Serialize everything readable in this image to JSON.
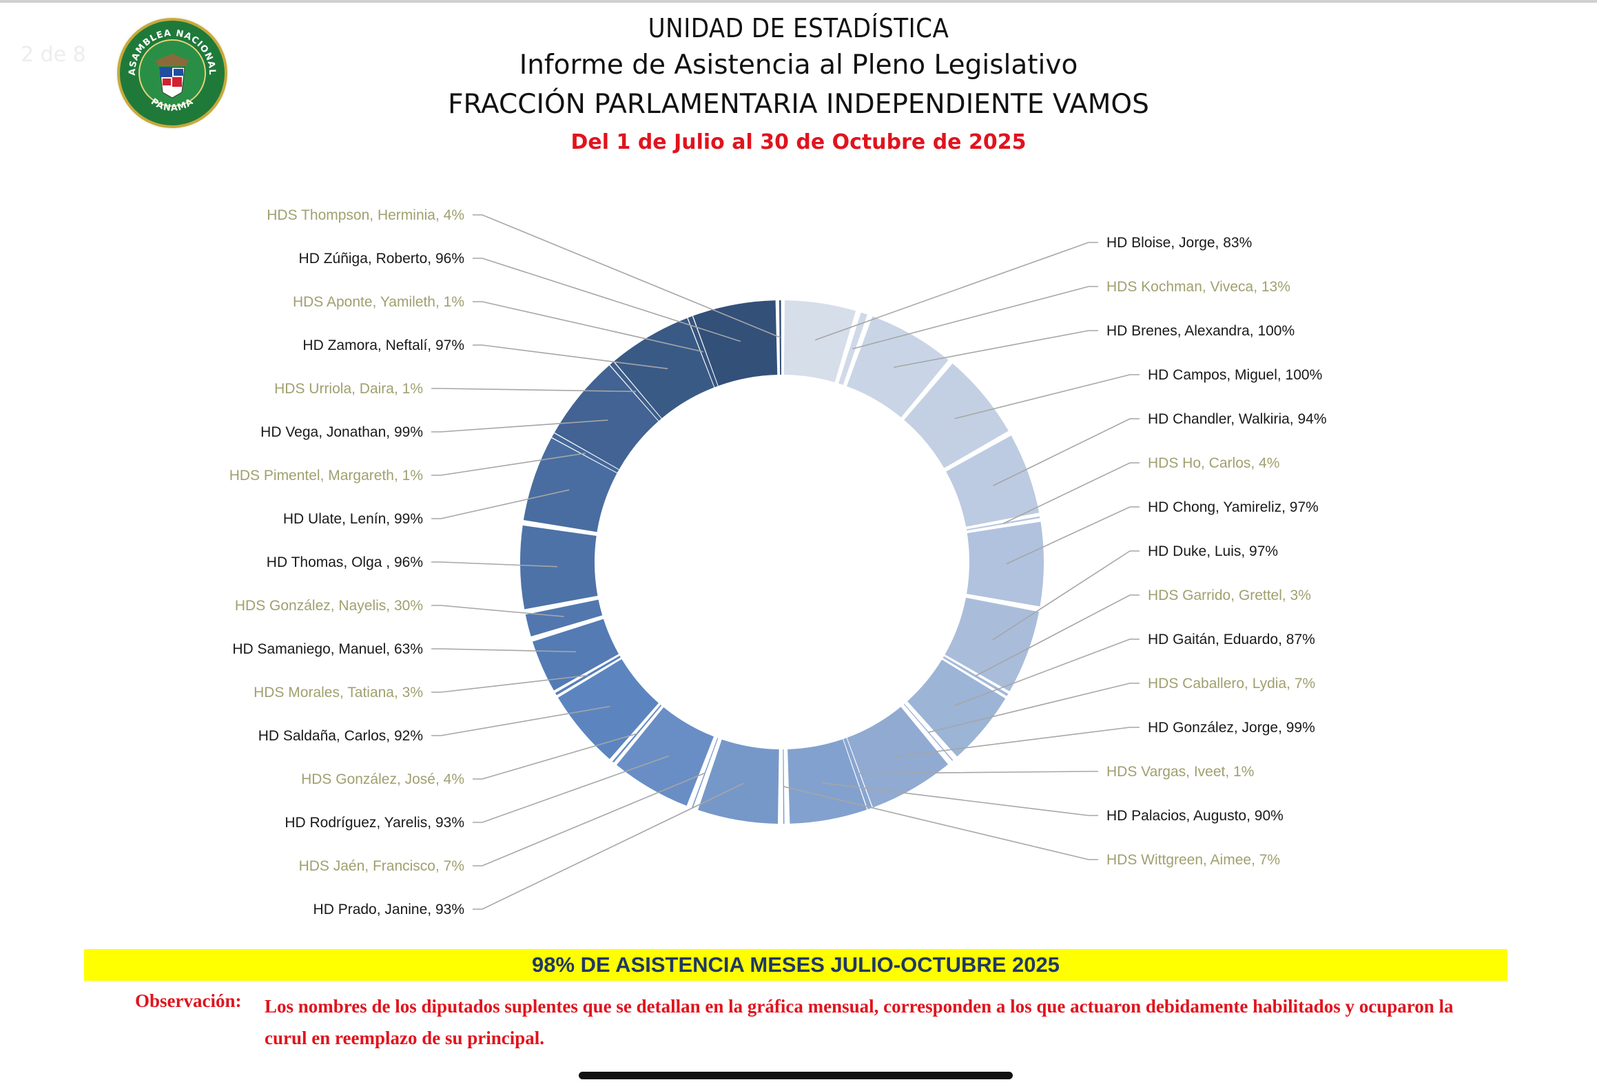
{
  "header": {
    "page_indicator": "2 de 8",
    "title_unit": "UNIDAD DE ESTADÍSTICA",
    "title_report": "Informe de Asistencia al Pleno Legislativo",
    "title_fraction": "FRACCIÓN PARLAMENTARIA INDEPENDIENTE VAMOS",
    "date_range": "Del 1 de Julio al 30 de Octubre de 2025"
  },
  "seal": {
    "text_top": "ASAMBLEA NACIONAL",
    "text_bottom": "PANAMA"
  },
  "colors": {
    "principal_label": "#1a1a1a",
    "substitute_label": "#a0a070",
    "leader_line": "#a6a6a6",
    "ring_start": "#d6deea",
    "ring_mid": "#5b84c0",
    "ring_end": "#2f4b72"
  },
  "chart_data": {
    "type": "pie",
    "style": "doughnut",
    "title": "",
    "start": "12 o'clock",
    "direction": "clockwise",
    "slices": [
      {
        "label": "HD Bloise, Jorge, 83%",
        "name": "HD Bloise, Jorge",
        "value": 83,
        "kind": "principal",
        "lines": 0
      },
      {
        "label": "HDS Kochman, Viveca, 13%",
        "name": "HDS Kochman, Viveca",
        "value": 13,
        "kind": "substitute",
        "lines": 0
      },
      {
        "label": "HD Brenes, Alexandra, 100%",
        "name": "HD Brenes, Alexandra",
        "value": 100,
        "kind": "principal",
        "lines": 0
      },
      {
        "label": "HD Campos, Miguel, 100%",
        "name": "HD Campos, Miguel",
        "value": 100,
        "kind": "principal",
        "lines": 0
      },
      {
        "label": "HD Chandler, Walkiria, 94%",
        "name": "HD Chandler, Walkiria",
        "value": 94,
        "kind": "principal",
        "lines": 0
      },
      {
        "label": "HDS Ho, Carlos, 4%",
        "name": "HDS Ho, Carlos",
        "value": 4,
        "kind": "substitute",
        "lines": 0
      },
      {
        "label": "HD Chong, Yamireliz, 97%",
        "name": "HD Chong, Yamireliz",
        "value": 97,
        "kind": "principal",
        "lines": 0
      },
      {
        "label": "HD Duke, Luis, 97%",
        "name": "HD Duke, Luis",
        "value": 97,
        "kind": "principal",
        "lines": 0
      },
      {
        "label": "HDS Garrido, Grettel, 3%",
        "name": "HDS Garrido, Grettel",
        "value": 3,
        "kind": "substitute",
        "lines": 0
      },
      {
        "label": "HD Gaitán, Eduardo, 87%",
        "name": "HD Gaitán, Eduardo",
        "value": 87,
        "kind": "principal",
        "lines": 0
      },
      {
        "label": "HDS Caballero, Lydia, 7%",
        "name": "HDS Caballero, Lydia",
        "value": 7,
        "kind": "substitute",
        "lines": 0
      },
      {
        "label": "HD González, Jorge, 99%",
        "name": "HD González, Jorge",
        "value": 99,
        "kind": "principal",
        "lines": 0
      },
      {
        "label": "HDS Vargas, Iveet, 1%",
        "name": "HDS Vargas, Iveet",
        "value": 1,
        "kind": "substitute",
        "lines": 0
      },
      {
        "label": "HD Palacios, Augusto, 90%",
        "name": "HD Palacios, Augusto",
        "value": 90,
        "kind": "principal",
        "lines": 0
      },
      {
        "label": "HDS Wittgreen, Aimee, 7%",
        "name": "HDS Wittgreen, Aimee",
        "value": 7,
        "kind": "substitute",
        "lines": 0
      },
      {
        "label": "HD Prado, Janine, 93%",
        "name": "HD Prado, Janine",
        "value": 93,
        "kind": "principal",
        "lines": 0
      },
      {
        "label": "HDS Jaén, Francisco, 7%",
        "name": "HDS Jaén, Francisco",
        "value": 7,
        "kind": "substitute",
        "lines": 0
      },
      {
        "label": "HD Rodríguez, Yarelis, 93%",
        "name": "HD Rodríguez, Yarelis",
        "value": 93,
        "kind": "principal",
        "lines": 0
      },
      {
        "label": "HDS González, José, 4%",
        "name": "HDS González, José",
        "value": 4,
        "kind": "substitute",
        "lines": 0
      },
      {
        "label": "HD Saldaña, Carlos, 92%",
        "name": "HD Saldaña, Carlos",
        "value": 92,
        "kind": "principal",
        "lines": 0
      },
      {
        "label": "HDS Morales, Tatiana, 3%",
        "name": "HDS Morales, Tatiana",
        "value": 3,
        "kind": "substitute",
        "lines": 0
      },
      {
        "label": "HD Samaniego, Manuel, 63%",
        "name": "HD Samaniego, Manuel",
        "value": 63,
        "kind": "principal",
        "lines": 0
      },
      {
        "label": "HDS González, Nayelis, 30%",
        "name": "HDS González, Nayelis",
        "value": 30,
        "kind": "substitute",
        "lines": 0
      },
      {
        "label": "HD Thomas, Olga , 96%",
        "name": "HD Thomas, Olga",
        "value": 96,
        "kind": "principal",
        "lines": 0
      },
      {
        "label": "HD Ulate, Lenín, 99%",
        "name": "HD Ulate, Lenín",
        "value": 99,
        "kind": "principal",
        "lines": 0
      },
      {
        "label": "HDS Pimentel, Margareth, 1%",
        "name": "HDS Pimentel, Margareth",
        "value": 1,
        "kind": "substitute",
        "lines": 0
      },
      {
        "label": "HD Vega, Jonathan, 99%",
        "name": "HD Vega, Jonathan",
        "value": 99,
        "kind": "principal",
        "lines": 0
      },
      {
        "label": "HDS Urriola, Daira, 1%",
        "name": "HDS Urriola, Daira",
        "value": 1,
        "kind": "substitute",
        "lines": 0
      },
      {
        "label": "HD Zamora, Neftalí, 97%",
        "name": "HD Zamora, Neftalí",
        "value": 97,
        "kind": "principal",
        "lines": 0
      },
      {
        "label": "HDS Aponte, Yamileth, 1%",
        "name": "HDS Aponte, Yamileth",
        "value": 1,
        "kind": "substitute",
        "lines": 0
      },
      {
        "label": "HD Zúñiga, Roberto, 96%",
        "name": "HD Zúñiga, Roberto",
        "value": 96,
        "kind": "principal",
        "lines": 0
      },
      {
        "label": "HDS Thompson, Herminia, 4%",
        "name": "HDS Thompson, Herminia",
        "value": 4,
        "kind": "substitute",
        "lines": 0
      }
    ]
  },
  "banner": {
    "text": "98% DE ASISTENCIA MESES JULIO-OCTUBRE 2025"
  },
  "observation": {
    "label": "Observación:",
    "text": "Los nombres de los diputados suplentes que se detallan en la gráfica mensual, corresponden a  los que actuaron debidamente habilitados y ocuparon la curul en reemplazo de su principal."
  }
}
